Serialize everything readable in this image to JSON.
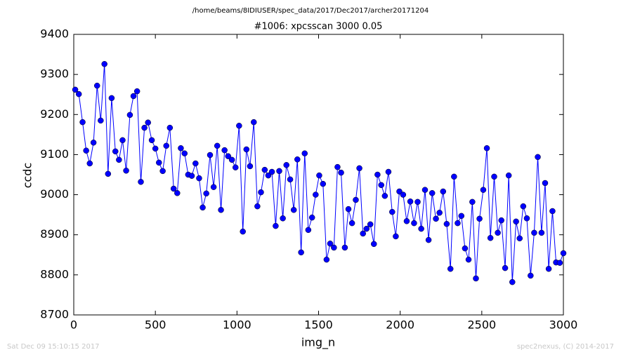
{
  "chart_data": {
    "type": "line",
    "suptitle": "/home/beams/8IDIUSER/spec_data/2017/Dec2017/archer20171204",
    "title": "#1006: xpcsscan 3000 0.05",
    "xlabel": "img_n",
    "ylabel": "ccdc",
    "footer_left": "Sat Dec 09 15:10:15 2017",
    "footer_right": "spec2nexus, (C) 2014-2017",
    "xlim": [
      0,
      3000
    ],
    "xticks": [
      0,
      500,
      1000,
      1500,
      2000,
      2500,
      3000
    ],
    "ylim": [
      8700,
      9400
    ],
    "yticks": [
      8700,
      8800,
      8900,
      9000,
      9100,
      9200,
      9300,
      9400
    ],
    "x": [
      9,
      31,
      54,
      76,
      98,
      121,
      143,
      165,
      188,
      210,
      232,
      255,
      277,
      299,
      321,
      344,
      366,
      388,
      411,
      433,
      455,
      478,
      500,
      522,
      545,
      567,
      589,
      612,
      634,
      656,
      679,
      701,
      723,
      746,
      768,
      790,
      812,
      835,
      857,
      879,
      902,
      924,
      946,
      969,
      991,
      1013,
      1036,
      1058,
      1080,
      1103,
      1125,
      1147,
      1170,
      1192,
      1214,
      1237,
      1259,
      1281,
      1303,
      1326,
      1348,
      1370,
      1393,
      1415,
      1437,
      1460,
      1482,
      1504,
      1527,
      1549,
      1571,
      1594,
      1616,
      1638,
      1661,
      1683,
      1705,
      1728,
      1750,
      1772,
      1794,
      1817,
      1839,
      1861,
      1884,
      1906,
      1928,
      1951,
      1973,
      1995,
      2018,
      2040,
      2062,
      2085,
      2107,
      2129,
      2152,
      2174,
      2196,
      2219,
      2241,
      2263,
      2285,
      2308,
      2330,
      2352,
      2375,
      2397,
      2419,
      2442,
      2464,
      2486,
      2509,
      2531,
      2553,
      2576,
      2598,
      2620,
      2643,
      2665,
      2687,
      2710,
      2732,
      2754,
      2776,
      2799,
      2821,
      2843,
      2866,
      2888,
      2910,
      2933,
      2955,
      2978,
      3000
    ],
    "series": [
      {
        "color": "#0000ff",
        "values": [
          9262,
          9251,
          9181,
          9110,
          9078,
          9130,
          9272,
          9185,
          9326,
          9052,
          9241,
          9108,
          9087,
          9136,
          9060,
          9199,
          9246,
          9258,
          9032,
          9167,
          9180,
          9136,
          9115,
          9080,
          9059,
          9122,
          9167,
          9015,
          9004,
          9116,
          9103,
          9050,
          9047,
          9078,
          9041,
          8968,
          9003,
          9099,
          9019,
          9122,
          8962,
          9111,
          9096,
          9087,
          9068,
          9172,
          8908,
          9113,
          9071,
          9181,
          8971,
          9006,
          9062,
          9048,
          9057,
          8922,
          9059,
          8941,
          9074,
          9038,
          8962,
          9088,
          8856,
          9103,
          8912,
          8943,
          9000,
          9048,
          9027,
          8838,
          8878,
          8868,
          9069,
          9055,
          8868,
          8964,
          8929,
          8987,
          9066,
          8903,
          8915,
          8926,
          8877,
          9050,
          9024,
          8997,
          9057,
          8957,
          8896,
          9008,
          9000,
          8934,
          8983,
          8929,
          8982,
          8915,
          9012,
          8887,
          9004,
          8940,
          8955,
          9008,
          8927,
          8815,
          9045,
          8929,
          8947,
          8866,
          8838,
          8982,
          8791,
          8940,
          9012,
          9116,
          8892,
          9045,
          8905,
          8936,
          8817,
          9048,
          8782,
          8933,
          8891,
          8971,
          8941,
          8798,
          8905,
          9094,
          8905,
          9029,
          8815,
          8959,
          8831,
          8830,
          8854
        ]
      }
    ]
  }
}
